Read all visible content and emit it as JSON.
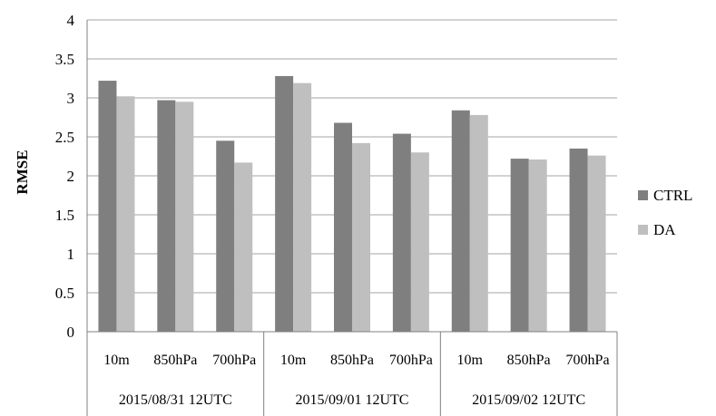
{
  "chart_data": {
    "type": "bar",
    "ylabel": "RMSE",
    "ylim": [
      0,
      4
    ],
    "yticks": [
      "0",
      "0.5",
      "1",
      "1.5",
      "2",
      "2.5",
      "3",
      "3.5",
      "4"
    ],
    "categories": [
      "10m",
      "850hPa",
      "700hPa",
      "10m",
      "850hPa",
      "700hPa",
      "10m",
      "850hPa",
      "700hPa"
    ],
    "groups": [
      "2015/08/31 12UTC",
      "2015/09/01 12UTC",
      "2015/09/02 12UTC"
    ],
    "series": [
      {
        "name": "CTRL",
        "color": "#7f7f7f",
        "values": [
          3.22,
          2.97,
          2.45,
          3.28,
          2.68,
          2.54,
          2.84,
          2.22,
          2.35
        ]
      },
      {
        "name": "DA",
        "color": "#bfbfbf",
        "values": [
          3.02,
          2.95,
          2.17,
          3.19,
          2.42,
          2.3,
          2.78,
          2.21,
          2.26
        ]
      }
    ],
    "grid": true,
    "legend_position": "right"
  }
}
